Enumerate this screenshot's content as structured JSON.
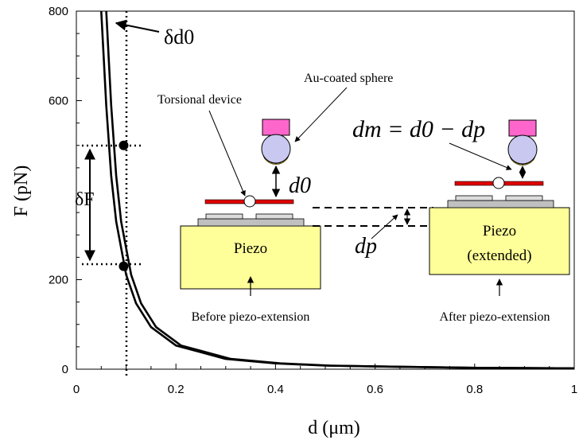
{
  "chart_data": {
    "type": "line",
    "xlabel": "d (μm)",
    "ylabel": "F (pN)",
    "xlim": [
      0,
      1
    ],
    "ylim": [
      0,
      800
    ],
    "x_ticks": [
      "0",
      "0.2",
      "0.4",
      "0.6",
      "0.8",
      "1"
    ],
    "y_ticks": [
      "0",
      "200",
      "600",
      "800"
    ],
    "grid": false,
    "series": [
      {
        "x": [
          0.05,
          0.06,
          0.07,
          0.08,
          0.1,
          0.12,
          0.15,
          0.2,
          0.3,
          0.4,
          0.5,
          0.6,
          0.8,
          1.0
        ],
        "y": [
          800,
          589,
          432,
          330,
          211,
          147,
          94,
          53,
          23,
          13,
          8,
          6,
          3,
          2
        ]
      },
      {
        "x": [
          0.06,
          0.07,
          0.08,
          0.09,
          0.11,
          0.13,
          0.16,
          0.21,
          0.31,
          0.41,
          0.51,
          0.61,
          0.81,
          1.0
        ],
        "y": [
          800,
          589,
          432,
          330,
          211,
          147,
          94,
          53,
          23,
          13,
          8,
          6,
          3,
          2
        ]
      }
    ],
    "markers": [
      {
        "x": 0.095,
        "y": 500
      },
      {
        "x": 0.095,
        "y": 230
      }
    ],
    "annotations": {
      "delta_d0": "δd0",
      "delta_F": "δF",
      "torsional_device": "Torsional device",
      "au_sphere": "Au-coated sphere",
      "d0": "d0",
      "dp": "dp",
      "equation": "dm = d0 − dp",
      "piezo_left": "Piezo",
      "piezo_right_line1": "Piezo",
      "piezo_right_line2": "(extended)",
      "caption_left": "Before piezo-extension",
      "caption_right": "After piezo-extension"
    }
  },
  "colors": {
    "piezo_fill": "#ffff99",
    "plate": "#c0c0c0",
    "cantilever": "#e00000",
    "magnet": "#ff66cc",
    "sphere": "#c8c8f0",
    "gold": "#ffcc00"
  }
}
